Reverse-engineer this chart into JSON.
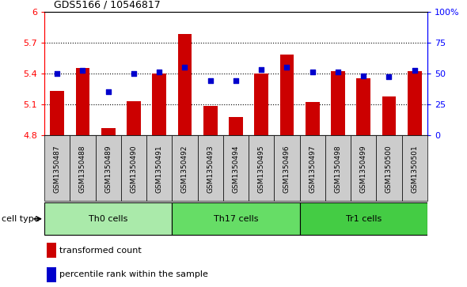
{
  "title": "GDS5166 / 10546817",
  "samples": [
    "GSM1350487",
    "GSM1350488",
    "GSM1350489",
    "GSM1350490",
    "GSM1350491",
    "GSM1350492",
    "GSM1350493",
    "GSM1350494",
    "GSM1350495",
    "GSM1350496",
    "GSM1350497",
    "GSM1350498",
    "GSM1350499",
    "GSM1350500",
    "GSM1350501"
  ],
  "transformed_count": [
    5.23,
    5.45,
    4.87,
    5.13,
    5.4,
    5.78,
    5.08,
    4.97,
    5.4,
    5.58,
    5.12,
    5.42,
    5.35,
    5.17,
    5.42
  ],
  "percentile_rank": [
    50,
    52,
    35,
    50,
    51,
    55,
    44,
    44,
    53,
    55,
    51,
    51,
    48,
    47,
    52
  ],
  "ylim_left": [
    4.8,
    6.0
  ],
  "ylim_right": [
    0,
    100
  ],
  "yticks_left": [
    4.8,
    5.1,
    5.4,
    5.7,
    6.0
  ],
  "ytick_labels_left": [
    "4.8",
    "5.1",
    "5.4",
    "5.7",
    "6"
  ],
  "yticks_right": [
    0,
    25,
    50,
    75,
    100
  ],
  "ytick_labels_right": [
    "0",
    "25",
    "50",
    "75",
    "100%"
  ],
  "cell_groups": [
    {
      "label": "Th0 cells",
      "start": 0,
      "end": 5,
      "color": "#aaeaaa"
    },
    {
      "label": "Th17 cells",
      "start": 5,
      "end": 10,
      "color": "#66dd66"
    },
    {
      "label": "Tr1 cells",
      "start": 10,
      "end": 15,
      "color": "#44cc44"
    }
  ],
  "bar_color": "#cc0000",
  "dot_color": "#0000cc",
  "xtick_bg": "#cccccc",
  "plot_bg": "#ffffff",
  "legend_bar_label": "transformed count",
  "legend_dot_label": "percentile rank within the sample",
  "cell_type_label": "cell type",
  "grid_yticks": [
    5.1,
    5.4,
    5.7
  ]
}
